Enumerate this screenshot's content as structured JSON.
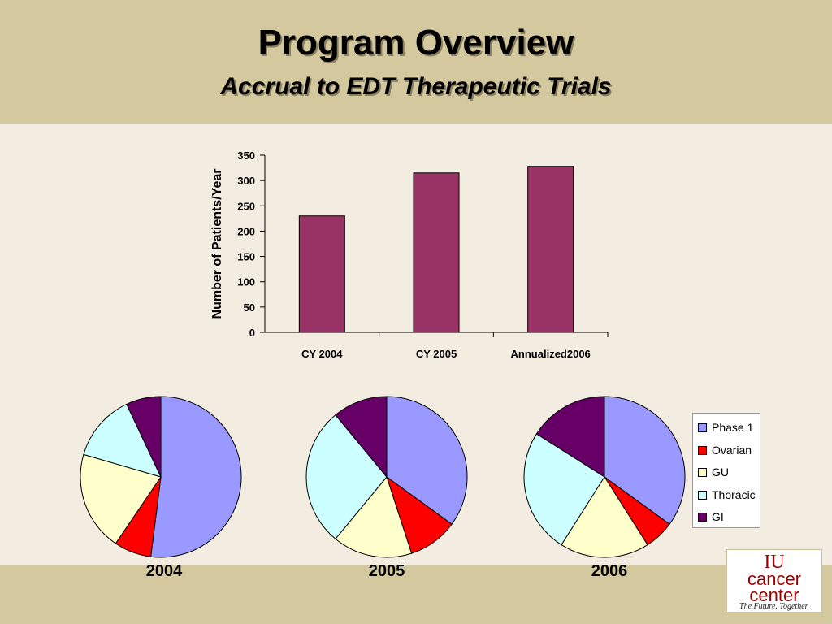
{
  "slide": {
    "title": "Program Overview",
    "subtitle": "Accrual to EDT Therapeutic Trials"
  },
  "colors": {
    "bar": "#993366",
    "phase1": "#9999ff",
    "ovarian": "#ff0000",
    "gu": "#ffffcc",
    "thoracic": "#ccffff",
    "gi": "#660066"
  },
  "chart_data": [
    {
      "type": "bar",
      "categories": [
        "CY 2004",
        "CY 2005",
        "Annualized2006"
      ],
      "values": [
        230,
        315,
        328
      ],
      "title": "",
      "xlabel": "",
      "ylabel": "Number of Patients/Year",
      "ylim": [
        0,
        350
      ],
      "yticks": [
        0,
        50,
        100,
        150,
        200,
        250,
        300,
        350
      ],
      "grid": false,
      "legend": "none"
    },
    {
      "type": "pie",
      "title": "2004",
      "labels": [
        "Phase 1",
        "Ovarian",
        "GU",
        "Thoracic",
        "GI"
      ],
      "values": [
        52,
        7.5,
        20,
        13.5,
        7
      ],
      "legend": "none"
    },
    {
      "type": "pie",
      "title": "2005",
      "labels": [
        "Phase 1",
        "Ovarian",
        "GU",
        "Thoracic",
        "GI"
      ],
      "values": [
        35,
        10,
        16,
        28,
        11
      ],
      "legend": "none"
    },
    {
      "type": "pie",
      "title": "2006",
      "labels": [
        "Phase 1",
        "Ovarian",
        "GU",
        "Thoracic",
        "GI"
      ],
      "values": [
        35,
        6,
        18,
        25,
        16
      ],
      "legend": "right"
    }
  ],
  "legend": {
    "items": [
      "Phase 1",
      "Ovarian",
      "GU",
      "Thoracic",
      "GI"
    ]
  },
  "logo": {
    "line1": "IU",
    "line2": "cancer",
    "line3": "center",
    "tagline": "The Future. Together."
  }
}
